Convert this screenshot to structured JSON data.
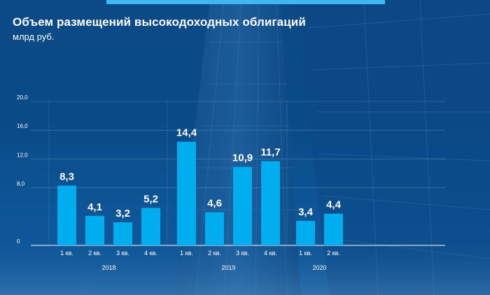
{
  "header": {
    "title": "Объем размещений высокодоходных облигаций",
    "subtitle": "млрд руб."
  },
  "colors": {
    "bar": "#00aeef",
    "text": "#ffffff",
    "grid": "#7aa9d6",
    "accent": "#3fb6ee"
  },
  "chart_data": {
    "type": "bar",
    "title": "Объем размещений высокодоходных облигаций",
    "ylabel": "млрд руб.",
    "xlabel": "",
    "ylim": [
      0,
      20
    ],
    "yticks": [
      "0",
      "8,0",
      "12,0",
      "16,0",
      "20,0"
    ],
    "ytick_values": [
      0,
      8,
      12,
      16,
      20
    ],
    "grid": true,
    "groups": [
      {
        "name": "2018",
        "categories": [
          "1 кв.",
          "2 кв.",
          "3 кв.",
          "4 кв."
        ],
        "values": [
          8.3,
          4.1,
          3.2,
          5.2
        ],
        "labels": [
          "8,3",
          "4,1",
          "3,2",
          "5,2"
        ]
      },
      {
        "name": "2019",
        "categories": [
          "1 кв.",
          "2 кв.",
          "3 кв.",
          "4 кв."
        ],
        "values": [
          14.4,
          4.6,
          10.9,
          11.7
        ],
        "labels": [
          "14,4",
          "4,6",
          "10,9",
          "11,7"
        ]
      },
      {
        "name": "2020",
        "categories": [
          "1 кв.",
          "2 кв."
        ],
        "values": [
          3.4,
          4.4
        ],
        "labels": [
          "3,4",
          "4,4"
        ]
      }
    ]
  }
}
